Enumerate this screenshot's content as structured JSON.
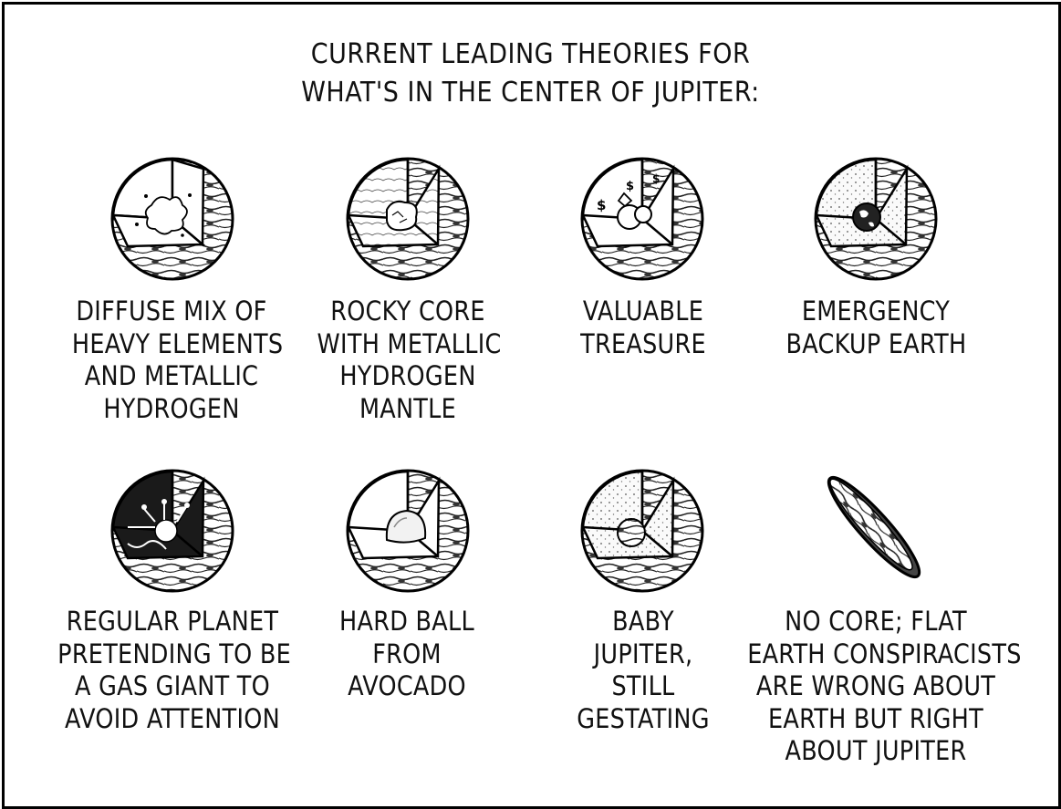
{
  "title": {
    "line1": "CURRENT LEADING THEORIES FOR",
    "line2": "WHAT'S IN THE CENTER OF JUPITER:"
  },
  "theories": [
    {
      "icon": "diffuse-mix-jupiter-icon",
      "lines": [
        "DIFFUSE MIX OF",
        "HEAVY ELEMENTS",
        "AND METALLIC",
        "HYDROGEN"
      ]
    },
    {
      "icon": "rocky-core-jupiter-icon",
      "lines": [
        "ROCKY CORE",
        "WITH METALLIC",
        "HYDROGEN",
        "MANTLE"
      ]
    },
    {
      "icon": "treasure-jupiter-icon",
      "lines": [
        "VALUABLE",
        "TREASURE"
      ]
    },
    {
      "icon": "backup-earth-jupiter-icon",
      "lines": [
        "EMERGENCY",
        "BACKUP EARTH"
      ]
    },
    {
      "icon": "regular-planet-jupiter-icon",
      "lines": [
        "REGULAR PLANET",
        "PRETENDING TO BE",
        "A GAS GIANT TO",
        "AVOID ATTENTION"
      ]
    },
    {
      "icon": "avocado-jupiter-icon",
      "lines": [
        "HARD BALL",
        "FROM",
        "AVOCADO"
      ]
    },
    {
      "icon": "baby-jupiter-icon",
      "lines": [
        "BABY",
        "JUPITER,",
        "STILL",
        "GESTATING"
      ]
    },
    {
      "icon": "flat-jupiter-icon",
      "lines": [
        "NO CORE; FLAT",
        "EARTH CONSPIRACISTS",
        "ARE WRONG ABOUT",
        "EARTH BUT RIGHT",
        "ABOUT JUPITER"
      ]
    }
  ]
}
